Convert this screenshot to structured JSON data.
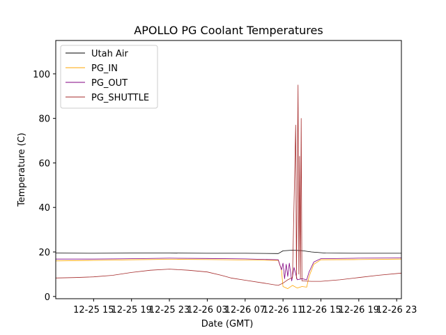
{
  "chart_data": {
    "type": "line",
    "title": "APOLLO PG Coolant Temperatures",
    "xlabel": "Date (GMT)",
    "ylabel": "Temperature (C)",
    "x_range": [
      "2022-12-25 11:00",
      "2022-12-26 23:30"
    ],
    "ylim": [
      -1,
      115
    ],
    "grid": false,
    "legend_position": "top-left",
    "x_ticks": [
      {
        "x": "2022-12-25 15:00",
        "label": "12-25 15"
      },
      {
        "x": "2022-12-25 19:00",
        "label": "12-25 19"
      },
      {
        "x": "2022-12-25 23:00",
        "label": "12-25 23"
      },
      {
        "x": "2022-12-26 03:00",
        "label": "12-26 03"
      },
      {
        "x": "2022-12-26 07:00",
        "label": "12-26 07"
      },
      {
        "x": "2022-12-26 11:00",
        "label": "12-26 11"
      },
      {
        "x": "2022-12-26 15:00",
        "label": "12-26 15"
      },
      {
        "x": "2022-12-26 19:00",
        "label": "12-26 19"
      },
      {
        "x": "2022-12-26 23:00",
        "label": "12-26 23"
      }
    ],
    "y_ticks": [
      0,
      20,
      40,
      60,
      80,
      100
    ],
    "series": [
      {
        "name": "Utah Air",
        "color": "#000000",
        "points": [
          [
            "2022-12-25 11:00",
            19.5
          ],
          [
            "2022-12-25 15:00",
            19.4
          ],
          [
            "2022-12-25 19:00",
            19.5
          ],
          [
            "2022-12-25 23:00",
            19.5
          ],
          [
            "2022-12-26 03:00",
            19.4
          ],
          [
            "2022-12-26 07:00",
            19.4
          ],
          [
            "2022-12-26 10:30",
            19.3
          ],
          [
            "2022-12-26 11:00",
            20.5
          ],
          [
            "2022-12-26 12:00",
            20.8
          ],
          [
            "2022-12-26 13:00",
            20.6
          ],
          [
            "2022-12-26 14:00",
            20.0
          ],
          [
            "2022-12-26 15:30",
            19.5
          ],
          [
            "2022-12-26 19:00",
            19.4
          ],
          [
            "2022-12-26 23:30",
            19.4
          ]
        ]
      },
      {
        "name": "PG_IN",
        "color": "#ffa500",
        "points": [
          [
            "2022-12-25 11:00",
            16.0
          ],
          [
            "2022-12-25 15:00",
            16.2
          ],
          [
            "2022-12-25 19:00",
            16.5
          ],
          [
            "2022-12-25 23:00",
            16.7
          ],
          [
            "2022-12-26 03:00",
            16.6
          ],
          [
            "2022-12-26 07:00",
            16.4
          ],
          [
            "2022-12-26 10:30",
            16.2
          ],
          [
            "2022-12-26 10:50",
            12.0
          ],
          [
            "2022-12-26 11:00",
            4.5
          ],
          [
            "2022-12-26 11:30",
            3.5
          ],
          [
            "2022-12-26 12:00",
            5.0
          ],
          [
            "2022-12-26 12:30",
            3.8
          ],
          [
            "2022-12-26 13:00",
            4.5
          ],
          [
            "2022-12-26 13:30",
            4.2
          ],
          [
            "2022-12-26 13:45",
            9.0
          ],
          [
            "2022-12-26 14:15",
            14.5
          ],
          [
            "2022-12-26 15:00",
            16.5
          ],
          [
            "2022-12-26 19:00",
            16.6
          ],
          [
            "2022-12-26 23:30",
            16.8
          ]
        ]
      },
      {
        "name": "PG_OUT",
        "color": "#800080",
        "points": [
          [
            "2022-12-25 11:00",
            16.8
          ],
          [
            "2022-12-25 15:00",
            16.8
          ],
          [
            "2022-12-25 19:00",
            17.0
          ],
          [
            "2022-12-25 23:00",
            17.2
          ],
          [
            "2022-12-26 03:00",
            17.1
          ],
          [
            "2022-12-26 07:00",
            16.9
          ],
          [
            "2022-12-26 10:30",
            16.5
          ],
          [
            "2022-12-26 10:50",
            12.0
          ],
          [
            "2022-12-26 11:00",
            15.0
          ],
          [
            "2022-12-26 11:10",
            8.0
          ],
          [
            "2022-12-26 11:20",
            14.5
          ],
          [
            "2022-12-26 11:30",
            9.0
          ],
          [
            "2022-12-26 11:40",
            15.0
          ],
          [
            "2022-12-26 11:55",
            7.0
          ],
          [
            "2022-12-26 12:10",
            13.0
          ],
          [
            "2022-12-26 12:30",
            7.5
          ],
          [
            "2022-12-26 13:00",
            8.0
          ],
          [
            "2022-12-26 13:30",
            7.5
          ],
          [
            "2022-12-26 13:45",
            11.0
          ],
          [
            "2022-12-26 14:15",
            15.5
          ],
          [
            "2022-12-26 15:00",
            17.0
          ],
          [
            "2022-12-26 19:00",
            17.2
          ],
          [
            "2022-12-26 23:30",
            17.3
          ]
        ]
      },
      {
        "name": "PG_SHUTTLE",
        "color": "#a52a2a",
        "points": [
          [
            "2022-12-25 11:00",
            8.3
          ],
          [
            "2022-12-25 13:00",
            8.5
          ],
          [
            "2022-12-25 15:00",
            8.8
          ],
          [
            "2022-12-25 17:00",
            9.5
          ],
          [
            "2022-12-25 19:00",
            10.8
          ],
          [
            "2022-12-25 21:00",
            11.8
          ],
          [
            "2022-12-25 23:00",
            12.3
          ],
          [
            "2022-12-26 01:00",
            11.8
          ],
          [
            "2022-12-26 03:00",
            11.0
          ],
          [
            "2022-12-26 04:30",
            9.5
          ],
          [
            "2022-12-26 05:30",
            8.3
          ],
          [
            "2022-12-26 07:00",
            7.3
          ],
          [
            "2022-12-26 09:00",
            6.0
          ],
          [
            "2022-12-26 10:00",
            5.3
          ],
          [
            "2022-12-26 10:30",
            5.0
          ],
          [
            "2022-12-26 11:00",
            6.0
          ],
          [
            "2022-12-26 11:30",
            7.5
          ],
          [
            "2022-12-26 12:00",
            8.5
          ],
          [
            "2022-12-26 12:20",
            77.0
          ],
          [
            "2022-12-26 12:25",
            8.0
          ],
          [
            "2022-12-26 12:35",
            95.0
          ],
          [
            "2022-12-26 12:40",
            10.0
          ],
          [
            "2022-12-26 12:45",
            63.0
          ],
          [
            "2022-12-26 12:50",
            8.0
          ],
          [
            "2022-12-26 12:55",
            80.0
          ],
          [
            "2022-12-26 13:00",
            7.0
          ],
          [
            "2022-12-26 14:00",
            6.8
          ],
          [
            "2022-12-26 15:00",
            6.8
          ],
          [
            "2022-12-26 17:00",
            7.5
          ],
          [
            "2022-12-26 19:00",
            8.5
          ],
          [
            "2022-12-26 21:00",
            9.5
          ],
          [
            "2022-12-26 23:30",
            10.5
          ]
        ]
      }
    ]
  }
}
